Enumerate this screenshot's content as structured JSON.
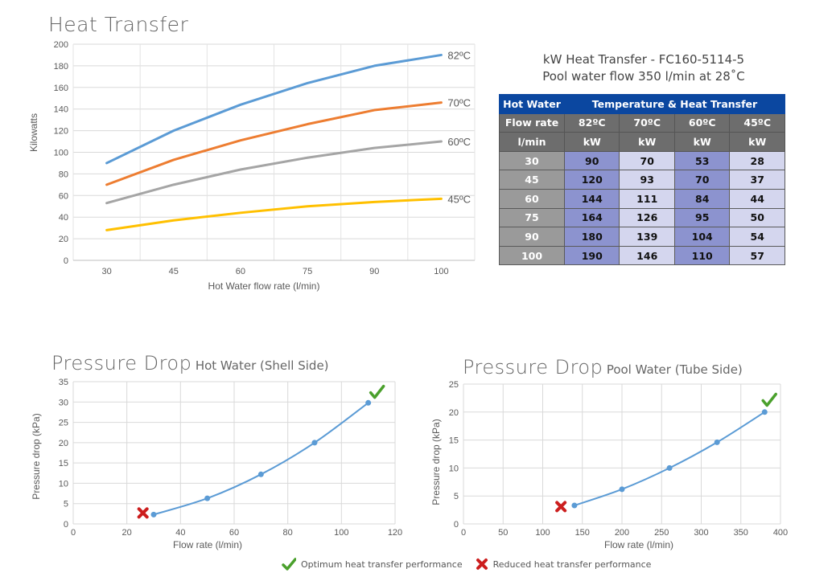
{
  "chart_data": [
    {
      "type": "line",
      "title": "Heat Transfer",
      "xlabel": "Hot Water flow rate (l/min)",
      "ylabel": "Kilowatts",
      "x": [
        30,
        45,
        60,
        75,
        90,
        100
      ],
      "x_tick_labels": [
        "30",
        "45",
        "60",
        "75",
        "90",
        "100"
      ],
      "y_tick_labels": [
        "0",
        "20",
        "40",
        "60",
        "80",
        "100",
        "120",
        "140",
        "160",
        "180",
        "200"
      ],
      "ylim": [
        0,
        200
      ],
      "grid": true,
      "legend": "inline-right",
      "series": [
        {
          "name": "82ºC",
          "color": "#5b9bd5",
          "values": [
            90,
            120,
            144,
            164,
            180,
            190
          ]
        },
        {
          "name": "70ºC",
          "color": "#ed7d31",
          "values": [
            70,
            93,
            111,
            126,
            139,
            146
          ]
        },
        {
          "name": "60ºC",
          "color": "#a5a5a5",
          "values": [
            53,
            70,
            84,
            95,
            104,
            110
          ]
        },
        {
          "name": "45ºC",
          "color": "#ffc000",
          "values": [
            28,
            37,
            44,
            50,
            54,
            57
          ]
        }
      ]
    },
    {
      "type": "table",
      "title": "kW Heat Transfer - FC160-5114-5",
      "subtitle": "Pool water flow 350 l/min at 28˚C",
      "header_left": "Hot Water",
      "header_right": "Temperature & Heat Transfer",
      "sub_header": [
        "Flow rate",
        "82ºC",
        "70ºC",
        "60ºC",
        "45ºC"
      ],
      "units_row": [
        "l/min",
        "kW",
        "kW",
        "kW",
        "kW"
      ],
      "rows": [
        [
          "30",
          "90",
          "70",
          "53",
          "28"
        ],
        [
          "45",
          "120",
          "93",
          "70",
          "37"
        ],
        [
          "60",
          "144",
          "111",
          "84",
          "44"
        ],
        [
          "75",
          "164",
          "126",
          "95",
          "50"
        ],
        [
          "90",
          "180",
          "139",
          "104",
          "54"
        ],
        [
          "100",
          "190",
          "146",
          "110",
          "57"
        ]
      ]
    },
    {
      "type": "line",
      "title": "Pressure Drop",
      "subtitle": "Hot Water (Shell Side)",
      "xlabel": "Flow rate (l/min)",
      "ylabel": "Pressure drop (kPa)",
      "xlim": [
        0,
        120
      ],
      "ylim": [
        0,
        35
      ],
      "x_ticks": [
        0,
        20,
        40,
        60,
        80,
        100,
        120
      ],
      "y_ticks": [
        0,
        5,
        10,
        15,
        20,
        25,
        30,
        35
      ],
      "grid": true,
      "series": [
        {
          "name": "Hot Water",
          "color": "#5b9bd5",
          "x": [
            30,
            50,
            70,
            90,
            110
          ],
          "values": [
            2.3,
            6.3,
            12.2,
            20,
            29.8
          ]
        }
      ],
      "annotations": [
        {
          "type": "reduced",
          "x": 26,
          "y": 2.7
        },
        {
          "type": "optimum",
          "x": 113,
          "y": 32.5
        }
      ]
    },
    {
      "type": "line",
      "title": "Pressure Drop",
      "subtitle": "Pool Water (Tube Side)",
      "xlabel": "Flow rate (l/min)",
      "ylabel": "Pressure drop (kPa)",
      "xlim": [
        0,
        400
      ],
      "ylim": [
        0,
        25
      ],
      "x_ticks": [
        0,
        50,
        100,
        150,
        200,
        250,
        300,
        350,
        400
      ],
      "y_ticks": [
        0,
        5,
        10,
        15,
        20,
        25
      ],
      "grid": true,
      "series": [
        {
          "name": "Pool Water",
          "color": "#5b9bd5",
          "x": [
            140,
            200,
            260,
            320,
            380
          ],
          "values": [
            3.3,
            6.2,
            10,
            14.6,
            20
          ]
        }
      ],
      "annotations": [
        {
          "type": "reduced",
          "x": 123,
          "y": 3.1
        },
        {
          "type": "optimum",
          "x": 385,
          "y": 22.2
        }
      ]
    }
  ],
  "legend": {
    "optimum_label": "Optimum heat transfer performance",
    "reduced_label": "Reduced heat transfer performance",
    "optimum_color": "#4aa02c",
    "reduced_color": "#cc1e1e"
  }
}
